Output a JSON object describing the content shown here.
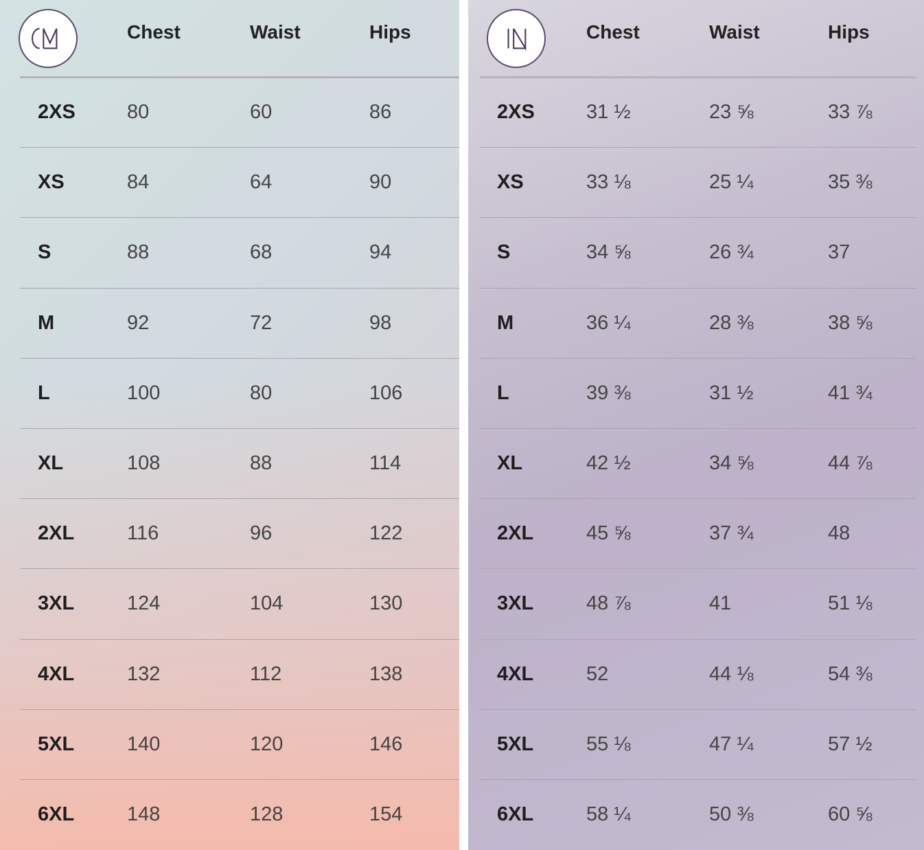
{
  "cm_table": {
    "unit_badge": "CM",
    "columns": [
      "Chest",
      "Waist",
      "Hips"
    ],
    "rows": [
      {
        "size": "2XS",
        "chest": "80",
        "waist": "60",
        "hips": "86"
      },
      {
        "size": "XS",
        "chest": "84",
        "waist": "64",
        "hips": "90"
      },
      {
        "size": "S",
        "chest": "88",
        "waist": "68",
        "hips": "94"
      },
      {
        "size": "M",
        "chest": "92",
        "waist": "72",
        "hips": "98"
      },
      {
        "size": "L",
        "chest": "100",
        "waist": "80",
        "hips": "106"
      },
      {
        "size": "XL",
        "chest": "108",
        "waist": "88",
        "hips": "114"
      },
      {
        "size": "2XL",
        "chest": "116",
        "waist": "96",
        "hips": "122"
      },
      {
        "size": "3XL",
        "chest": "124",
        "waist": "104",
        "hips": "130"
      },
      {
        "size": "4XL",
        "chest": "132",
        "waist": "112",
        "hips": "138"
      },
      {
        "size": "5XL",
        "chest": "140",
        "waist": "120",
        "hips": "146"
      },
      {
        "size": "6XL",
        "chest": "148",
        "waist": "128",
        "hips": "154"
      }
    ]
  },
  "in_table": {
    "unit_badge": "IN",
    "columns": [
      "Chest",
      "Waist",
      "Hips"
    ],
    "rows": [
      {
        "size": "2XS",
        "chest": "31 ½",
        "waist": "23 ⅝",
        "hips": "33 ⅞"
      },
      {
        "size": "XS",
        "chest": "33 ⅛",
        "waist": "25 ¼",
        "hips": "35 ⅜"
      },
      {
        "size": "S",
        "chest": "34 ⅝",
        "waist": "26 ¾",
        "hips": "37"
      },
      {
        "size": "M",
        "chest": "36 ¼",
        "waist": "28 ⅜",
        "hips": "38 ⅝"
      },
      {
        "size": "L",
        "chest": "39 ⅜",
        "waist": "31 ½",
        "hips": "41 ¾"
      },
      {
        "size": "XL",
        "chest": "42 ½",
        "waist": "34 ⅝",
        "hips": "44 ⅞"
      },
      {
        "size": "2XL",
        "chest": "45 ⅝",
        "waist": "37 ¾",
        "hips": "48"
      },
      {
        "size": "3XL",
        "chest": "48 ⅞",
        "waist": "41",
        "hips": "51 ⅛"
      },
      {
        "size": "4XL",
        "chest": "52",
        "waist": "44 ⅛",
        "hips": "54 ⅜"
      },
      {
        "size": "5XL",
        "chest": "55 ⅛",
        "waist": "47 ¼",
        "hips": "57 ½"
      },
      {
        "size": "6XL",
        "chest": "58 ¼",
        "waist": "50 ⅜",
        "hips": "60 ⅝"
      }
    ]
  },
  "colors": {
    "badge_stroke": "#5a4a6e",
    "size_text": "#1e1e1e",
    "value_text": "#444444"
  }
}
